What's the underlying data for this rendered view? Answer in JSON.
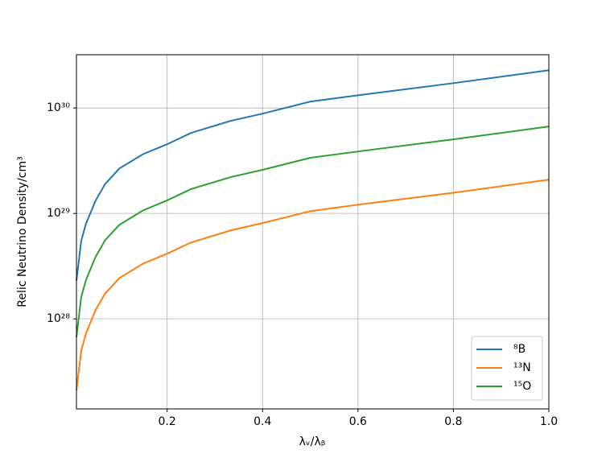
{
  "chart_data": {
    "type": "line",
    "xlabel": "λᵥ/λᵦ",
    "ylabel": "Relic Neutrino Density/cm³",
    "x": [
      0.01,
      0.02,
      0.03,
      0.05,
      0.07,
      0.1,
      0.15,
      0.2,
      0.25,
      0.333,
      0.4,
      0.5,
      0.6,
      0.8,
      1.0
    ],
    "series": [
      {
        "name": "⁸B",
        "color": "#1f77b4",
        "values": [
          2.3e+28,
          5.5e+28,
          8e+28,
          1.32e+29,
          1.9e+29,
          2.67e+29,
          3.66e+29,
          4.53e+29,
          5.8e+29,
          7.55e+29,
          8.84e+29,
          1.15e+30,
          1.32e+30,
          1.72e+30,
          2.28e+30
        ]
      },
      {
        "name": "¹³N",
        "color": "#ff7f0e",
        "values": [
          2.1e+27,
          5e+27,
          7.3e+27,
          1.21e+28,
          1.74e+28,
          2.44e+28,
          3.35e+28,
          4.15e+28,
          5.3e+28,
          6.9e+28,
          8.1e+28,
          1.05e+29,
          1.21e+29,
          1.57e+29,
          2.09e+29
        ]
      },
      {
        "name": "¹⁵O",
        "color": "#2ca02c",
        "values": [
          6.7e+27,
          1.61e+28,
          2.34e+28,
          3.87e+28,
          5.57e+28,
          7.8e+28,
          1.07e+29,
          1.33e+29,
          1.7e+29,
          2.21e+29,
          2.59e+29,
          3.37e+29,
          3.87e+29,
          5.04e+29,
          6.68e+29
        ]
      }
    ],
    "xlim": [
      0.01,
      1.0
    ],
    "ylim": [
      1.4e+27,
      3.2e+30
    ],
    "yscale": "log",
    "xticks": [
      0.2,
      0.4,
      0.6,
      0.8,
      {
        "value": 1.0,
        "label": "1.0"
      }
    ],
    "yticks": [
      {
        "value": 1e+28,
        "label": "10²⁸"
      },
      {
        "value": 1e+29,
        "label": "10²⁹"
      },
      {
        "value": 1e+30,
        "label": "10³⁰"
      }
    ],
    "grid": true,
    "legend": "lower right"
  }
}
